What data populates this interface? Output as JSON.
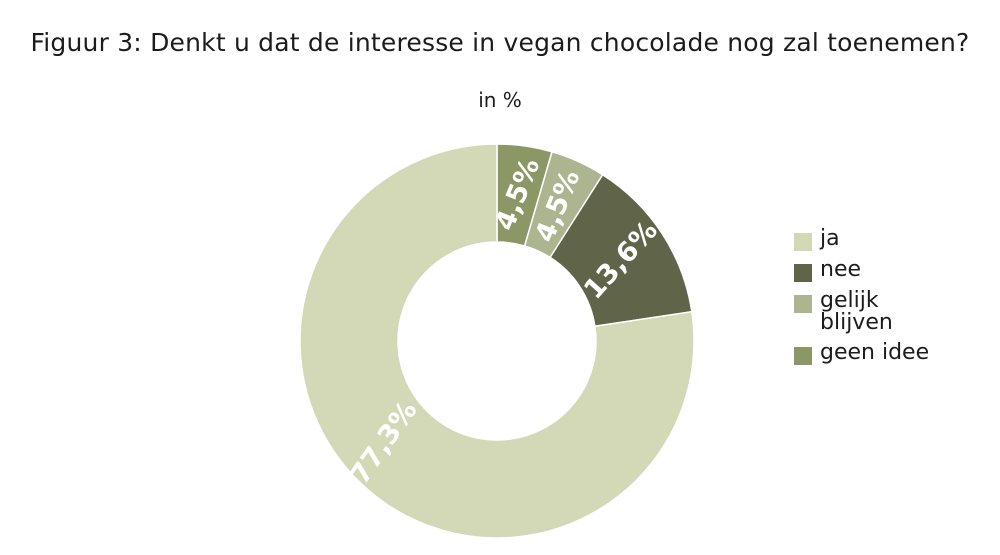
{
  "chart_data": {
    "type": "pie",
    "title": "Figuur 3: Denkt u dat de interesse in vegan chocolade nog zal toenemen?",
    "subtitle": "in %",
    "donut": true,
    "legend_position": "right",
    "slices": [
      {
        "label": "ja",
        "value": 77.3,
        "display": "77,3%",
        "color": "#d3d9b6"
      },
      {
        "label": "nee",
        "value": 13.6,
        "display": "13,6%",
        "color": "#60654a"
      },
      {
        "label": "gelijk blijven",
        "value": 4.5,
        "display": "4,5%",
        "color": "#adb490"
      },
      {
        "label": "geen idee",
        "value": 4.5,
        "display": "4,5%",
        "color": "#8c9766"
      }
    ],
    "slice_order_clockwise_from_top": [
      "geen idee",
      "gelijk blijven",
      "nee",
      "ja"
    ]
  }
}
